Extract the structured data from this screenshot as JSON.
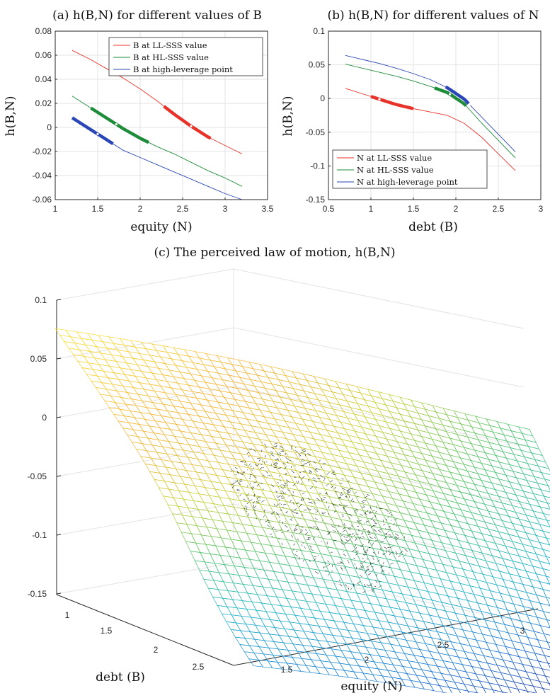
{
  "chart_data": [
    {
      "panel": "a",
      "type": "line",
      "title": "(a) h(B,N) for different values of B",
      "xlabel": "equity (N)",
      "ylabel": "h(B,N)",
      "xlim": [
        1,
        3.5
      ],
      "ylim": [
        -0.06,
        0.08
      ],
      "xticks": [
        "1",
        "1.5",
        "2",
        "2.5",
        "3",
        "3.5"
      ],
      "yticks": [
        "-0.06",
        "-0.04",
        "-0.02",
        "0",
        "0.02",
        "0.04",
        "0.06",
        "0.08"
      ],
      "grid": true,
      "legend_position": "top-right",
      "series": [
        {
          "name": "B at LL-SSS value",
          "color": "#e8332a",
          "x": [
            1.2,
            1.4,
            1.6,
            1.8,
            2.0,
            2.2,
            2.4,
            2.6,
            2.8,
            3.0,
            3.2
          ],
          "y": [
            0.064,
            0.057,
            0.049,
            0.041,
            0.032,
            0.022,
            0.011,
            0.001,
            -0.008,
            -0.015,
            -0.022
          ],
          "highlight": [
            2.28,
            2.83
          ],
          "marker_x": 2.6
        },
        {
          "name": "B at HL-SSS value",
          "color": "#1e8c3a",
          "x": [
            1.2,
            1.4,
            1.6,
            1.8,
            2.0,
            2.2,
            2.4,
            2.6,
            2.8,
            3.0,
            3.2
          ],
          "y": [
            0.026,
            0.017,
            0.008,
            -0.001,
            -0.009,
            -0.016,
            -0.022,
            -0.029,
            -0.036,
            -0.042,
            -0.049
          ],
          "highlight": [
            1.42,
            2.1
          ],
          "marker_x": 1.72
        },
        {
          "name": "B at high-leverage point",
          "color": "#2a45b5",
          "x": [
            1.2,
            1.4,
            1.6,
            1.8,
            2.0,
            2.2,
            2.4,
            2.6,
            2.8,
            3.0,
            3.2
          ],
          "y": [
            0.008,
            -0.001,
            -0.01,
            -0.019,
            -0.025,
            -0.031,
            -0.037,
            -0.043,
            -0.049,
            -0.055,
            -0.06
          ],
          "highlight": [
            1.2,
            1.68
          ],
          "marker_x": 1.5
        }
      ]
    },
    {
      "panel": "b",
      "type": "line",
      "title": "(b) h(B,N) for different values of N",
      "xlabel": "debt (B)",
      "ylabel": "h(B,N)",
      "xlim": [
        0.5,
        3
      ],
      "ylim": [
        -0.15,
        0.1
      ],
      "xticks": [
        "0.5",
        "1",
        "1.5",
        "2",
        "2.5",
        "3"
      ],
      "yticks": [
        "-0.15",
        "-0.1",
        "-0.05",
        "0",
        "0.05",
        "0.1"
      ],
      "grid": true,
      "legend_position": "bottom-left",
      "series": [
        {
          "name": "N at LL-SSS value",
          "color": "#e8332a",
          "x": [
            0.7,
            0.9,
            1.1,
            1.3,
            1.5,
            1.7,
            1.9,
            2.1,
            2.3,
            2.5,
            2.7
          ],
          "y": [
            0.015,
            0.007,
            -0.001,
            -0.009,
            -0.015,
            -0.02,
            -0.025,
            -0.037,
            -0.057,
            -0.082,
            -0.107
          ],
          "highlight": [
            1.0,
            1.5
          ],
          "marker_x": 1.1
        },
        {
          "name": "N at HL-SSS value",
          "color": "#1e8c3a",
          "x": [
            0.7,
            0.9,
            1.1,
            1.3,
            1.5,
            1.7,
            1.9,
            2.1,
            2.3,
            2.5,
            2.7
          ],
          "y": [
            0.051,
            0.045,
            0.039,
            0.033,
            0.026,
            0.018,
            0.009,
            -0.008,
            -0.036,
            -0.062,
            -0.088
          ],
          "highlight": [
            1.75,
            2.12
          ],
          "marker_x": 1.93
        },
        {
          "name": "N at high-leverage point",
          "color": "#2a45b5",
          "x": [
            0.7,
            0.9,
            1.1,
            1.3,
            1.5,
            1.7,
            1.9,
            2.1,
            2.3,
            2.5,
            2.7
          ],
          "y": [
            0.064,
            0.058,
            0.052,
            0.045,
            0.037,
            0.028,
            0.016,
            -0.001,
            -0.027,
            -0.053,
            -0.079
          ],
          "highlight": [
            1.88,
            2.15
          ],
          "marker_x": 2.16
        }
      ]
    },
    {
      "panel": "c",
      "type": "surface",
      "title": "(c) The perceived law of motion, h(B,N)",
      "xlabel": "equity (N)",
      "ylabel": "debt (B)",
      "zlim": [
        -0.15,
        0.1
      ],
      "zticks": [
        "0.1",
        "0.05",
        "0",
        "-0.05",
        "-0.1",
        "-0.15"
      ],
      "equity_ticks": [
        "1.5",
        "2",
        "2.5",
        "3"
      ],
      "debt_ticks": [
        "1",
        "1.5",
        "2",
        "2.5"
      ],
      "grid": true,
      "colormap": [
        "#2b2c99",
        "#1f7ad6",
        "#23b7c9",
        "#52c46f",
        "#c9d23b",
        "#f7b43c",
        "#f6e93c"
      ]
    }
  ]
}
